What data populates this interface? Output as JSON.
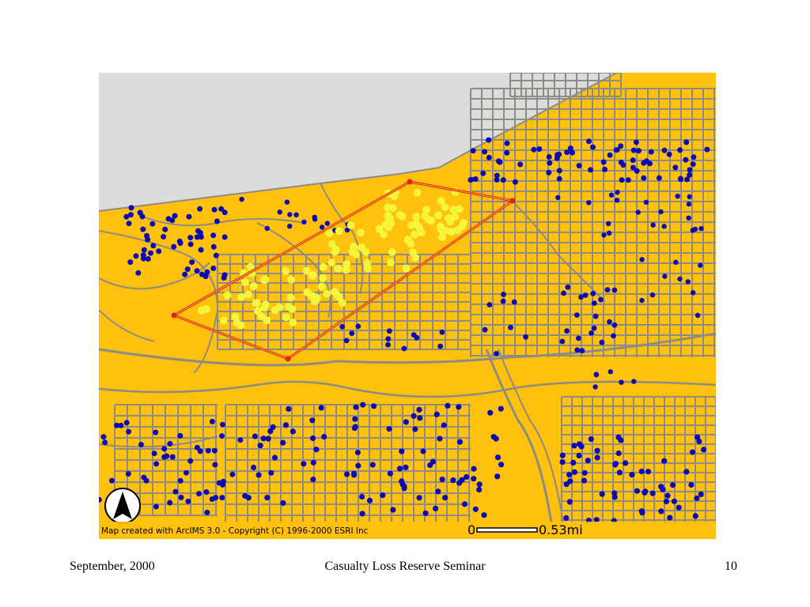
{
  "map": {
    "credit": "Map created with ArcIMS 3.0 - Copyright (C) 1996-2000 ESRI Inc",
    "scale": {
      "start_label": "0",
      "end_label": "0.53mi"
    },
    "north_arrow_label": "N",
    "colors": {
      "land": "#FFC10E",
      "water": "#DCDCDC",
      "roads": "#8C8C84",
      "blue_points": "#0A0AB4",
      "yellow_points": "#F5F53A",
      "selection": "#E02020"
    }
  },
  "footer": {
    "date": "September, 2000",
    "title": "Casualty Loss Reserve Seminar",
    "page": "10"
  }
}
